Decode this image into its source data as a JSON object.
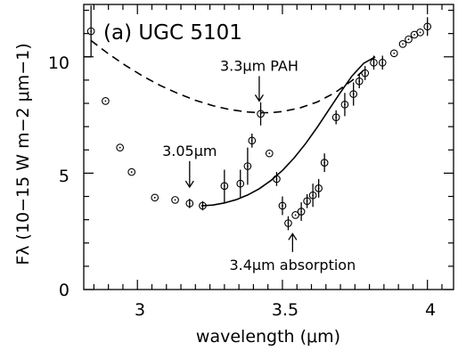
{
  "chart_data": {
    "type": "scatter",
    "title": "(a) UGC 5101",
    "xlabel": "wavelength (μm)",
    "ylabel": "Fλ (10−15 W m−2 μm−1)",
    "xlim": [
      2.815,
      4.09
    ],
    "ylim": [
      0,
      12.25
    ],
    "x_ticks": [
      "3",
      "3.5",
      "4"
    ],
    "y_ticks": [
      "0",
      "5",
      "10"
    ],
    "grid": false,
    "points": [
      {
        "x": 2.84,
        "y": 11.1,
        "err": 1.1
      },
      {
        "x": 2.89,
        "y": 8.1,
        "err": 0
      },
      {
        "x": 2.94,
        "y": 6.1,
        "err": 0
      },
      {
        "x": 2.98,
        "y": 5.05,
        "err": 0
      },
      {
        "x": 3.06,
        "y": 3.95,
        "err": 0
      },
      {
        "x": 3.13,
        "y": 3.85,
        "err": 0
      },
      {
        "x": 3.18,
        "y": 3.7,
        "err": 0.2
      },
      {
        "x": 3.225,
        "y": 3.6,
        "err": 0.2
      },
      {
        "x": 3.3,
        "y": 4.45,
        "err": 0.7
      },
      {
        "x": 3.355,
        "y": 4.55,
        "err": 0.6
      },
      {
        "x": 3.38,
        "y": 5.3,
        "err": 0.8
      },
      {
        "x": 3.395,
        "y": 6.4,
        "err": 0.3
      },
      {
        "x": 3.425,
        "y": 7.55,
        "err": 0.5
      },
      {
        "x": 3.455,
        "y": 5.85,
        "err": 0
      },
      {
        "x": 3.48,
        "y": 4.75,
        "err": 0.3
      },
      {
        "x": 3.5,
        "y": 3.6,
        "err": 0.4
      },
      {
        "x": 3.52,
        "y": 2.85,
        "err": 0.3
      },
      {
        "x": 3.545,
        "y": 3.2,
        "err": 0
      },
      {
        "x": 3.565,
        "y": 3.35,
        "err": 0.4
      },
      {
        "x": 3.585,
        "y": 3.8,
        "err": 0.3
      },
      {
        "x": 3.605,
        "y": 4.05,
        "err": 0.5
      },
      {
        "x": 3.625,
        "y": 4.35,
        "err": 0.4
      },
      {
        "x": 3.645,
        "y": 5.45,
        "err": 0.4
      },
      {
        "x": 3.685,
        "y": 7.4,
        "err": 0.3
      },
      {
        "x": 3.715,
        "y": 7.95,
        "err": 0.5
      },
      {
        "x": 3.745,
        "y": 8.4,
        "err": 0.5
      },
      {
        "x": 3.765,
        "y": 8.95,
        "err": 0.3
      },
      {
        "x": 3.785,
        "y": 9.3,
        "err": 0.3
      },
      {
        "x": 3.815,
        "y": 9.75,
        "err": 0.3
      },
      {
        "x": 3.845,
        "y": 9.75,
        "err": 0.3
      },
      {
        "x": 3.885,
        "y": 10.15,
        "err": 0
      },
      {
        "x": 3.915,
        "y": 10.55,
        "err": 0
      },
      {
        "x": 3.935,
        "y": 10.75,
        "err": 0
      },
      {
        "x": 3.955,
        "y": 10.95,
        "err": 0
      },
      {
        "x": 3.975,
        "y": 11.05,
        "err": 0
      },
      {
        "x": 4.0,
        "y": 11.3,
        "err": 0.4
      }
    ],
    "continuum_dashed": [
      [
        2.84,
        10.7
      ],
      [
        2.9,
        10.13
      ],
      [
        2.96,
        9.62
      ],
      [
        3.02,
        9.16
      ],
      [
        3.08,
        8.76
      ],
      [
        3.14,
        8.42
      ],
      [
        3.2,
        8.13
      ],
      [
        3.26,
        7.9
      ],
      [
        3.32,
        7.73
      ],
      [
        3.38,
        7.63
      ],
      [
        3.42,
        7.6
      ],
      [
        3.46,
        7.6
      ],
      [
        3.5,
        7.65
      ],
      [
        3.56,
        7.8
      ],
      [
        3.62,
        8.06
      ],
      [
        3.68,
        8.45
      ],
      [
        3.74,
        8.98
      ],
      [
        3.78,
        9.42
      ]
    ],
    "continuum_solid": [
      [
        3.22,
        3.6
      ],
      [
        3.26,
        3.63
      ],
      [
        3.3,
        3.72
      ],
      [
        3.34,
        3.86
      ],
      [
        3.38,
        4.06
      ],
      [
        3.42,
        4.33
      ],
      [
        3.46,
        4.68
      ],
      [
        3.5,
        5.12
      ],
      [
        3.54,
        5.65
      ],
      [
        3.58,
        6.27
      ],
      [
        3.62,
        6.97
      ],
      [
        3.66,
        7.72
      ],
      [
        3.7,
        8.47
      ],
      [
        3.74,
        9.18
      ],
      [
        3.78,
        9.72
      ],
      [
        3.82,
        10.0
      ]
    ],
    "annotations": [
      {
        "text": "3.3μm PAH",
        "x": 3.42,
        "y": 9.4,
        "arrow_to": 8.1
      },
      {
        "text": "3.05μm",
        "x": 3.18,
        "y": 5.75,
        "arrow_to": 4.4
      },
      {
        "text": "3.4μm absorption",
        "x": 3.535,
        "y": 0.85,
        "arrow_to": 2.4
      }
    ]
  }
}
